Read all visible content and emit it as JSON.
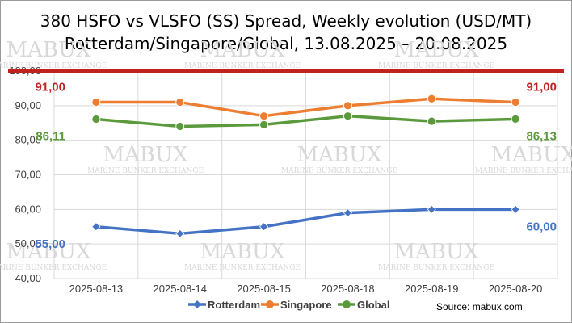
{
  "chart_data": {
    "type": "line",
    "title": "380 HSFO vs VLSFO (SS) Spread, Weekly evolution (USD/MT)",
    "subtitle": "Rotterdam/Singapore/Global, 13.08.2025 – 20.08.2025",
    "categories": [
      "2025-08-13",
      "2025-08-14",
      "2025-08-15",
      "2025-08-18",
      "2025-08-19",
      "2025-08-20"
    ],
    "ylim": [
      40,
      100
    ],
    "yticks": [
      40,
      50,
      60,
      70,
      80,
      90,
      100
    ],
    "ytick_labels": [
      "40,00",
      "50,00",
      "60,00",
      "70,00",
      "80,00",
      "90,00",
      "100,00"
    ],
    "grid": true,
    "reference_line": {
      "value": 100,
      "color": "#c0221f"
    },
    "legend_position": "bottom",
    "series": [
      {
        "name": "Rotterdam",
        "color": "#4472c4",
        "marker": "diamond",
        "values": [
          55,
          53,
          55,
          59,
          60,
          60
        ],
        "labels": [
          {
            "index": 0,
            "text": "55,00"
          },
          {
            "index": 5,
            "text": "60,00"
          }
        ]
      },
      {
        "name": "Singapore",
        "color": "#ed7d31",
        "marker": "circle",
        "values": [
          91,
          91,
          87,
          90,
          92,
          91
        ],
        "labels": [
          {
            "index": 0,
            "text": "91,00",
            "color": "#c0221f"
          },
          {
            "index": 5,
            "text": "91,00",
            "color": "#c0221f"
          }
        ]
      },
      {
        "name": "Global",
        "color": "#5b9a3c",
        "marker": "circle",
        "values": [
          86.11,
          84,
          84.5,
          87,
          85.5,
          86.13
        ],
        "labels": [
          {
            "index": 0,
            "text": "86,11"
          },
          {
            "index": 5,
            "text": "86,13"
          }
        ]
      }
    ],
    "source": "Source: mabux.com"
  },
  "watermark": {
    "brand": "MABUX",
    "tagline": "MARINE BUNKER EXCHANGE"
  }
}
